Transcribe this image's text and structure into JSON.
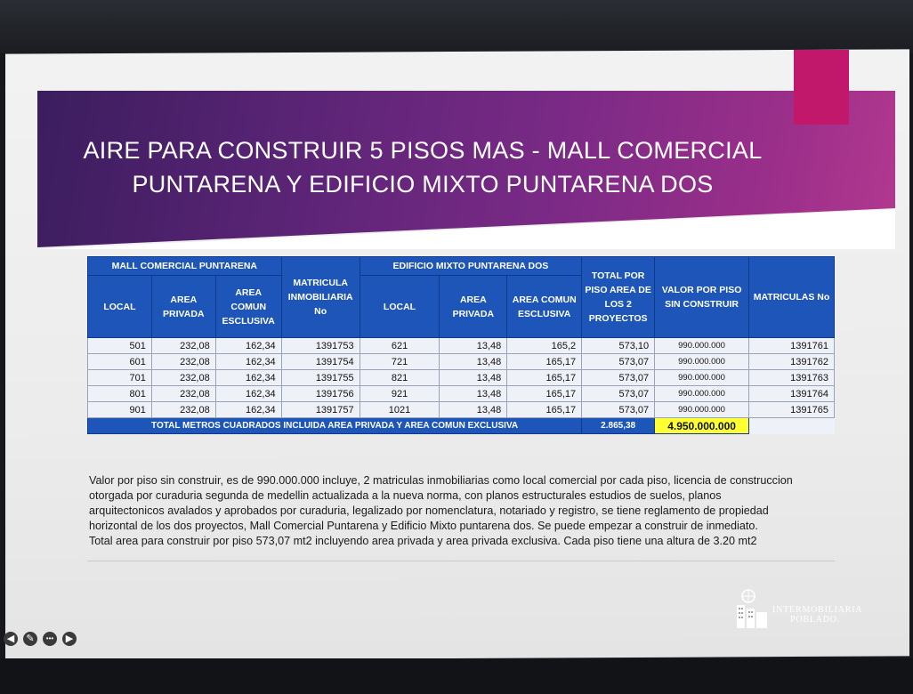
{
  "slide": {
    "title_line1": "AIRE PARA CONSTRUIR 5 PISOS MAS - MALL COMERCIAL",
    "title_line2": "PUNTARENA Y EDIFICIO MIXTO PUNTARENA DOS",
    "accent_color": "#c2186b",
    "banner_color": "#5a2475"
  },
  "table": {
    "group_mall": "MALL COMERCIAL PUNTARENA",
    "group_edificio": "EDIFICIO MIXTO PUNTARENA DOS",
    "headers": {
      "local": "LOCAL",
      "area_privada": "AREA PRIVADA",
      "area_comun": "AREA COMUN ESCLUSIVA",
      "matricula": "MATRICULA INMOBILIARIA No",
      "local2": "LOCAL",
      "area_privada2": "AREA PRIVADA",
      "area_comun2": "AREA COMUN ESCLUSIVA",
      "total_piso": "TOTAL POR PISO AREA DE LOS 2 PROYECTOS",
      "valor_piso": "VALOR POR PISO SIN CONSTRUIR",
      "matriculas": "MATRICULAS No"
    },
    "rows": [
      [
        "501",
        "232,08",
        "162,34",
        "1391753",
        "621",
        "13,48",
        "165,2",
        "573,10",
        "990.000.000",
        "1391761"
      ],
      [
        "601",
        "232,08",
        "162,34",
        "1391754",
        "721",
        "13,48",
        "165,17",
        "573,07",
        "990.000.000",
        "1391762"
      ],
      [
        "701",
        "232,08",
        "162,34",
        "1391755",
        "821",
        "13,48",
        "165,17",
        "573,07",
        "990.000.000",
        "1391763"
      ],
      [
        "801",
        "232,08",
        "162,34",
        "1391756",
        "921",
        "13,48",
        "165,17",
        "573,07",
        "990.000.000",
        "1391764"
      ],
      [
        "901",
        "232,08",
        "162,34",
        "1391757",
        "1021",
        "13,48",
        "165,17",
        "573,07",
        "990.000.000",
        "1391765"
      ]
    ],
    "total_label": "TOTAL METROS CUADRADOS INCLUIDA AREA PRIVADA Y AREA COMUN EXCLUSIVA",
    "total_area": "2.865,38",
    "total_valor": "4.950.000.000"
  },
  "description": [
    "Valor por piso sin construir, es de 990.000.000 incluye, 2 matriculas inmobiliarias como local comercial por cada piso, licencia de construccion",
    "otorgada por curaduria segunda de medellin actualizada a la nueva norma, con planos estructurales estudios de suelos, planos",
    "arquitectonicos avalados y aprobados por curaduria, legalizado por nomenclatura, notariado y registro, se tiene reglamento de propiedad",
    "horizontal de los dos proyectos, Mall Comercial Puntarena y Edificio Mixto puntarena dos. Se puede empezar a construir de inmediato.",
    "Total area para construir por piso 573,07 mt2 incluyendo area privada y area privada exclusiva. Cada piso tiene una altura de 3.20 mt2"
  ],
  "logo": {
    "line1": "INTERMOBILIARIA",
    "line2": "POBLADO."
  },
  "controls": {
    "prev": "◀",
    "pen": "✎",
    "more": "•••",
    "next": "▶"
  }
}
